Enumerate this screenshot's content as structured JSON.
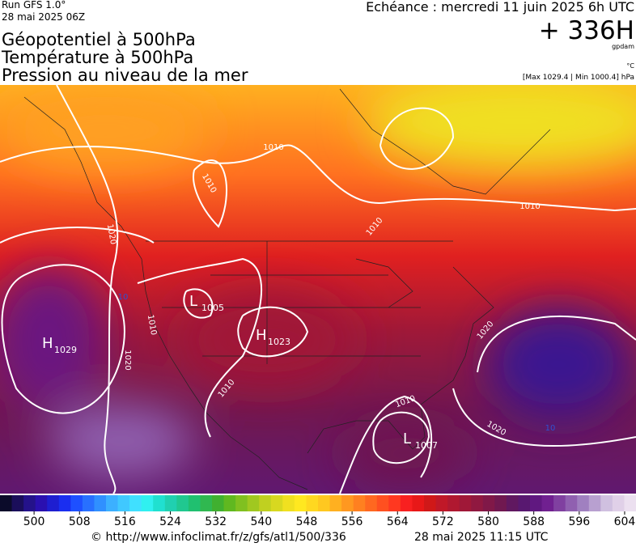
{
  "header": {
    "run": "Run GFS 1.0°",
    "run_date": "28 mai 2025 06Z",
    "titles": [
      "Géopotentiel à 500hPa",
      "Température à 500hPa",
      "Pression au niveau de la mer"
    ],
    "forecast": "Echéance : mercredi 11 juin 2025 6h UTC",
    "lead": "+ 336H",
    "unit_geopotential": "gpdam",
    "unit_temperature": "°C",
    "pressure_range": "[Max 1029.4 | Min 1000.4] hPa"
  },
  "map": {
    "centers": [
      {
        "type": "H",
        "value": "1029"
      },
      {
        "type": "L",
        "value": "1005"
      },
      {
        "type": "H",
        "value": "1023"
      },
      {
        "type": "L",
        "value": "1007"
      }
    ],
    "isobar_labels": [
      "1010",
      "1010",
      "1010",
      "1010",
      "1020",
      "1010",
      "1020",
      "1010",
      "1010",
      "1020",
      "1020"
    ],
    "isotherm_labels": [
      "10",
      "10"
    ]
  },
  "colorbar": {
    "lim": [
      494,
      606
    ],
    "ticks": [
      500,
      508,
      516,
      524,
      532,
      540,
      548,
      556,
      564,
      572,
      580,
      588,
      596,
      604
    ],
    "colors": [
      "#0b0b2a",
      "#1a0e5a",
      "#24128a",
      "#2a10b0",
      "#1e1ed0",
      "#1a2ef0",
      "#1e50ff",
      "#2870ff",
      "#3090ff",
      "#3cb0ff",
      "#40c8ff",
      "#40e0ff",
      "#30f0f0",
      "#20e0d0",
      "#20d0b0",
      "#20c890",
      "#20c070",
      "#30b850",
      "#40b030",
      "#60b820",
      "#80c020",
      "#a0c820",
      "#c0d020",
      "#d8d820",
      "#f0e020",
      "#ffe820",
      "#ffd820",
      "#ffc820",
      "#ffb020",
      "#ff9820",
      "#ff8020",
      "#ff6820",
      "#ff5020",
      "#ff3820",
      "#f82020",
      "#e81818",
      "#d01818",
      "#c01828",
      "#b01830",
      "#a01838",
      "#901840",
      "#801848",
      "#701850",
      "#601860",
      "#581870",
      "#601880",
      "#702090",
      "#8040a0",
      "#9060b0",
      "#a080c0",
      "#b8a0d0",
      "#d0c0e0",
      "#e0d0e8",
      "#ece0f0"
    ]
  },
  "footer": {
    "url": "© http://www.infoclimat.fr/z/gfs/atl1/500/336",
    "timestamp": "28 mai 2025 11:15 UTC"
  }
}
